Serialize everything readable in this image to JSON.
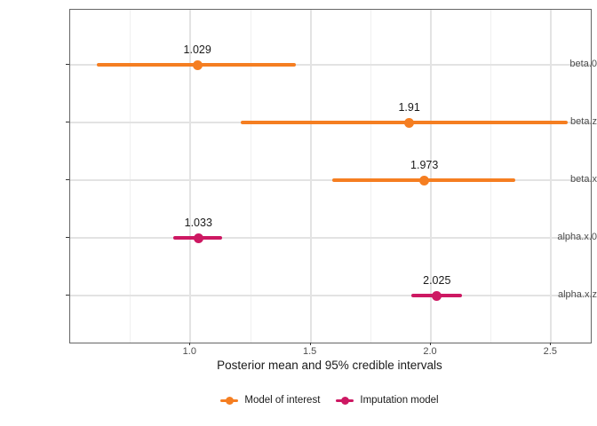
{
  "chart_data": {
    "type": "scatter",
    "subtype": "forest-plot-pointrange",
    "orientation": "horizontal",
    "title": "",
    "xlabel": "Posterior mean and 95% credible intervals",
    "ylabel": "",
    "xlim": [
      0.5,
      2.665
    ],
    "x_ticks": [
      1.0,
      1.5,
      2.0,
      2.5
    ],
    "x_tick_labels": [
      "1.0",
      "1.5",
      "2.0",
      "2.5"
    ],
    "x_minor_ticks": [
      0.75,
      1.25,
      1.75,
      2.25
    ],
    "categories": [
      "beta.0",
      "beta.z",
      "beta.x",
      "alpha.x.0",
      "alpha.x.z"
    ],
    "grid": true,
    "legend_position": "bottom",
    "series": [
      {
        "name": "Model of interest",
        "color": "#F57E21",
        "points": [
          {
            "category": "beta.0",
            "mean": 1.029,
            "label": "1.029",
            "ci_low": 0.61,
            "ci_high": 1.44
          },
          {
            "category": "beta.z",
            "mean": 1.91,
            "label": "1.91",
            "ci_low": 1.21,
            "ci_high": 2.57
          },
          {
            "category": "beta.x",
            "mean": 1.973,
            "label": "1.973",
            "ci_low": 1.59,
            "ci_high": 2.35
          }
        ]
      },
      {
        "name": "Imputation model",
        "color": "#CD1862",
        "points": [
          {
            "category": "alpha.x.0",
            "mean": 1.033,
            "label": "1.033",
            "ci_low": 0.93,
            "ci_high": 1.13
          },
          {
            "category": "alpha.x.z",
            "mean": 2.025,
            "label": "2.025",
            "ci_low": 1.92,
            "ci_high": 2.13
          }
        ]
      }
    ],
    "legend": [
      {
        "label": "Model of interest",
        "color": "#F57E21"
      },
      {
        "label": "Imputation model",
        "color": "#CD1862"
      }
    ],
    "style_colors": {
      "grid_major": "#e3e3e3",
      "grid_minor": "#f0f0f0",
      "panel_border": "#666666",
      "tick_mark": "#333333",
      "axis_text": "#4d4d4d",
      "label_text": "#1a1a1a"
    }
  }
}
